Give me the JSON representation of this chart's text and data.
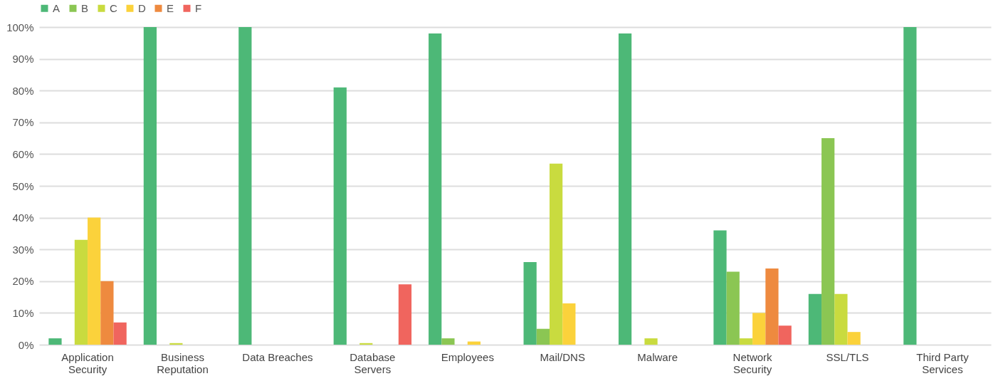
{
  "chart_data": {
    "type": "bar",
    "categories": [
      "Application Security",
      "Business Reputation",
      "Data Breaches",
      "Database Servers",
      "Employees",
      "Mail/DNS",
      "Malware",
      "Network Security",
      "SSL/TLS",
      "Third Party Services"
    ],
    "series": [
      {
        "name": "A",
        "color": "#4db877",
        "values": [
          2,
          100,
          100,
          81,
          98,
          26,
          98,
          36,
          16,
          100
        ]
      },
      {
        "name": "B",
        "color": "#8bc653",
        "values": [
          0,
          0,
          0,
          0,
          2,
          5,
          0,
          23,
          65,
          0
        ]
      },
      {
        "name": "C",
        "color": "#c9db3f",
        "values": [
          33,
          0.5,
          0,
          0.5,
          0,
          57,
          2,
          2,
          16,
          0
        ]
      },
      {
        "name": "D",
        "color": "#fbd23b",
        "values": [
          40,
          0,
          0,
          0,
          1,
          13,
          0,
          10,
          4,
          0
        ]
      },
      {
        "name": "E",
        "color": "#ee8a3f",
        "values": [
          20,
          0,
          0,
          0,
          0,
          0,
          0,
          24,
          0,
          0
        ]
      },
      {
        "name": "F",
        "color": "#f0655e",
        "values": [
          7,
          0,
          0,
          19,
          0,
          0,
          0,
          6,
          0,
          0
        ]
      }
    ],
    "ylim": [
      0,
      100
    ],
    "yticks": [
      {
        "value": 0,
        "label": "0%"
      },
      {
        "value": 10,
        "label": "10%"
      },
      {
        "value": 20,
        "label": "20%"
      },
      {
        "value": 30,
        "label": "30%"
      },
      {
        "value": 40,
        "label": "40%"
      },
      {
        "value": 50,
        "label": "50%"
      },
      {
        "value": 60,
        "label": "60%"
      },
      {
        "value": 70,
        "label": "70%"
      },
      {
        "value": 80,
        "label": "80%"
      },
      {
        "value": 90,
        "label": "90%"
      },
      {
        "value": 100,
        "label": "100%"
      }
    ],
    "grid": "y",
    "legend": "top"
  }
}
